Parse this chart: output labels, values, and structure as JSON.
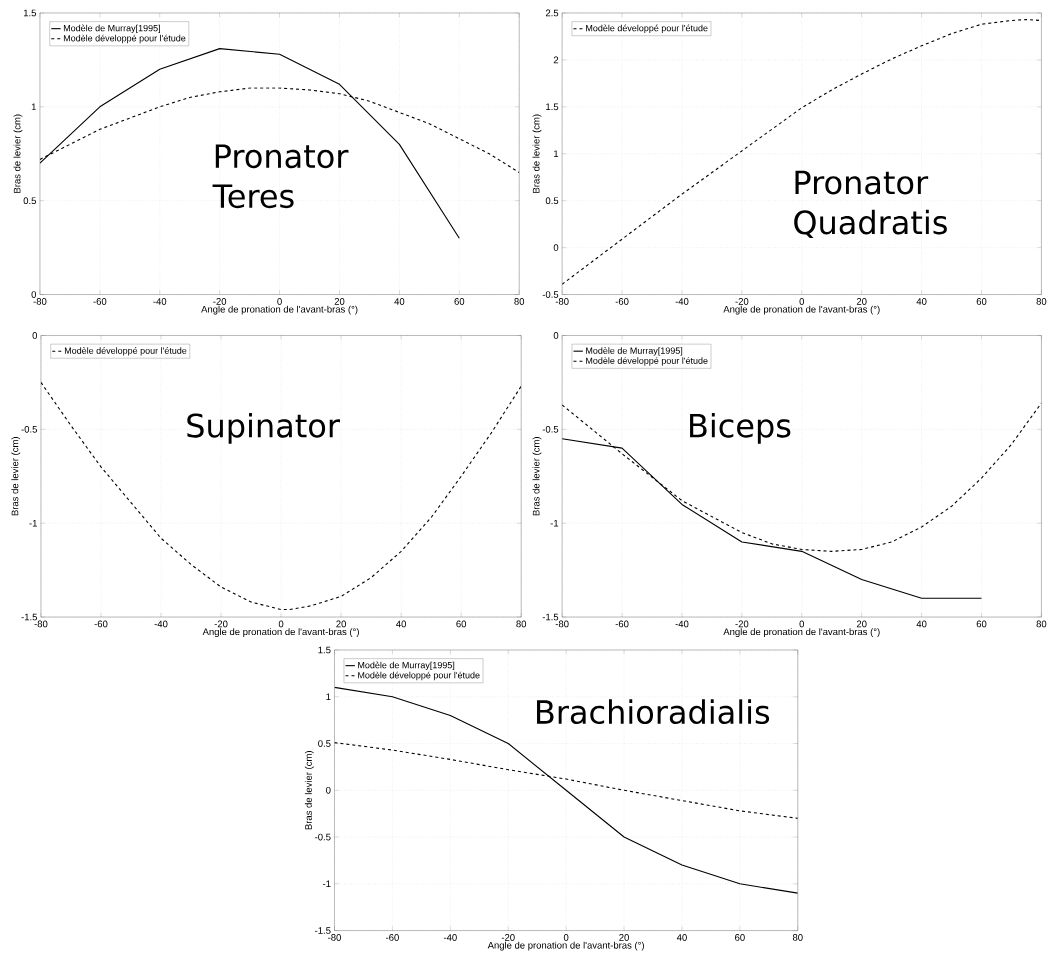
{
  "chart_data": [
    {
      "type": "line",
      "xlabel": "Angle de pronation de l'avant-bras (°)",
      "ylabel": "Bras de levier (cm)",
      "annotations": [
        "Pronator Teres"
      ],
      "xlim": [
        -80,
        80
      ],
      "ylim": [
        0,
        1.5
      ],
      "xticks": [
        -80,
        -60,
        -40,
        -20,
        0,
        20,
        40,
        60,
        80
      ],
      "yticks": [
        0,
        0.5,
        1,
        1.5
      ],
      "grid": true,
      "legend": "top left",
      "series": [
        {
          "name": "Modèle de Murray[1995]",
          "color": "#000000",
          "line_style": "solid",
          "x": [
            -80,
            -60,
            -40,
            -20,
            0,
            20,
            40,
            60
          ],
          "values": [
            0.7,
            1.0,
            1.2,
            1.31,
            1.28,
            1.12,
            0.8,
            0.3
          ]
        },
        {
          "name": "Modèle développé pour l'étude",
          "color": "#000000",
          "line_style": "dashed",
          "x": [
            -80,
            -70,
            -60,
            -50,
            -40,
            -30,
            -20,
            -10,
            0,
            10,
            20,
            30,
            40,
            50,
            60,
            70,
            80
          ],
          "values": [
            0.72,
            0.8,
            0.88,
            0.94,
            1.0,
            1.05,
            1.08,
            1.1,
            1.1,
            1.09,
            1.07,
            1.03,
            0.97,
            0.91,
            0.83,
            0.75,
            0.65
          ]
        }
      ]
    },
    {
      "type": "line",
      "xlabel": "Angle de pronation de l'avant-bras (°)",
      "ylabel": "Bras de levier (cm)",
      "annotations": [
        "Pronator Quadratis"
      ],
      "xlim": [
        -80,
        80
      ],
      "ylim": [
        -0.5,
        2.5
      ],
      "xticks": [
        -80,
        -60,
        -40,
        -20,
        0,
        20,
        40,
        60,
        80
      ],
      "yticks": [
        -0.5,
        0,
        0.5,
        1,
        1.5,
        2,
        2.5
      ],
      "grid": true,
      "legend": "top left",
      "series": [
        {
          "name": "Modèle développé pour l'étude",
          "color": "#000000",
          "line_style": "dashed",
          "x": [
            -80,
            -70,
            -60,
            -50,
            -40,
            -30,
            -20,
            -10,
            0,
            10,
            20,
            30,
            40,
            50,
            60,
            70,
            75,
            80
          ],
          "values": [
            -0.39,
            -0.15,
            0.09,
            0.33,
            0.57,
            0.8,
            1.03,
            1.26,
            1.49,
            1.68,
            1.85,
            2.01,
            2.15,
            2.28,
            2.38,
            2.42,
            2.43,
            2.42
          ]
        }
      ]
    },
    {
      "type": "line",
      "xlabel": "Angle de pronation de l'avant-bras (°)",
      "ylabel": "Bras de levier (cm)",
      "annotations": [
        "Supinator"
      ],
      "xlim": [
        -80,
        80
      ],
      "ylim": [
        -1.5,
        0
      ],
      "xticks": [
        -80,
        -60,
        -40,
        -20,
        0,
        20,
        40,
        60,
        80
      ],
      "yticks": [
        -1.5,
        -1,
        -0.5,
        0
      ],
      "grid": true,
      "legend": "top left",
      "series": [
        {
          "name": "Modèle développé pour l'étude",
          "color": "#000000",
          "line_style": "dashed",
          "x": [
            -80,
            -70,
            -60,
            -50,
            -40,
            -30,
            -20,
            -10,
            0,
            3,
            10,
            20,
            30,
            40,
            50,
            60,
            70,
            80
          ],
          "values": [
            -0.25,
            -0.48,
            -0.7,
            -0.89,
            -1.08,
            -1.22,
            -1.34,
            -1.42,
            -1.46,
            -1.46,
            -1.44,
            -1.39,
            -1.29,
            -1.15,
            -0.97,
            -0.75,
            -0.52,
            -0.27
          ]
        }
      ]
    },
    {
      "type": "line",
      "xlabel": "Angle de pronation de l'avant-bras (°)",
      "ylabel": "Bras de levier (cm)",
      "annotations": [
        "Biceps"
      ],
      "xlim": [
        -80,
        80
      ],
      "ylim": [
        -1.5,
        0
      ],
      "xticks": [
        -80,
        -60,
        -40,
        -20,
        0,
        20,
        40,
        60,
        80
      ],
      "yticks": [
        -1.5,
        -1,
        -0.5,
        0
      ],
      "grid": true,
      "legend": "top left",
      "series": [
        {
          "name": "Modèle de Murray[1995]",
          "color": "#000000",
          "line_style": "solid",
          "x": [
            -80,
            -60,
            -40,
            -20,
            0,
            20,
            40,
            60
          ],
          "values": [
            -0.55,
            -0.6,
            -0.9,
            -1.1,
            -1.15,
            -1.3,
            -1.4,
            -1.4
          ]
        },
        {
          "name": "Modèle développé pour l'étude",
          "color": "#000000",
          "line_style": "dashed",
          "x": [
            -80,
            -60,
            -40,
            -20,
            -10,
            0,
            10,
            20,
            30,
            40,
            50,
            60,
            70,
            80
          ],
          "values": [
            -0.37,
            -0.63,
            -0.88,
            -1.05,
            -1.11,
            -1.14,
            -1.15,
            -1.14,
            -1.1,
            -1.02,
            -0.91,
            -0.76,
            -0.58,
            -0.36
          ]
        }
      ]
    },
    {
      "type": "line",
      "xlabel": "Angle de pronation de l'avant-bras (°)",
      "ylabel": "Bras de levier (cm)",
      "annotations": [
        "Brachioradialis"
      ],
      "xlim": [
        -80,
        80
      ],
      "ylim": [
        -1.5,
        1.5
      ],
      "xticks": [
        -80,
        -60,
        -40,
        -20,
        0,
        20,
        40,
        60,
        80
      ],
      "yticks": [
        -1.5,
        -1,
        -0.5,
        0,
        0.5,
        1,
        1.5
      ],
      "grid": true,
      "legend": "top left",
      "series": [
        {
          "name": "Modèle de Murray[1995]",
          "color": "#000000",
          "line_style": "solid",
          "x": [
            -80,
            -60,
            -40,
            -20,
            0,
            20,
            40,
            60,
            80
          ],
          "values": [
            1.1,
            1.0,
            0.8,
            0.5,
            0.0,
            -0.5,
            -0.8,
            -1.0,
            -1.1
          ]
        },
        {
          "name": "Modèle développé pour l'étude",
          "color": "#000000",
          "line_style": "dashed",
          "x": [
            -80,
            -60,
            -40,
            -20,
            0,
            20,
            40,
            60,
            80
          ],
          "values": [
            0.51,
            0.43,
            0.33,
            0.22,
            0.12,
            0.0,
            -0.11,
            -0.22,
            -0.3
          ]
        }
      ]
    }
  ]
}
